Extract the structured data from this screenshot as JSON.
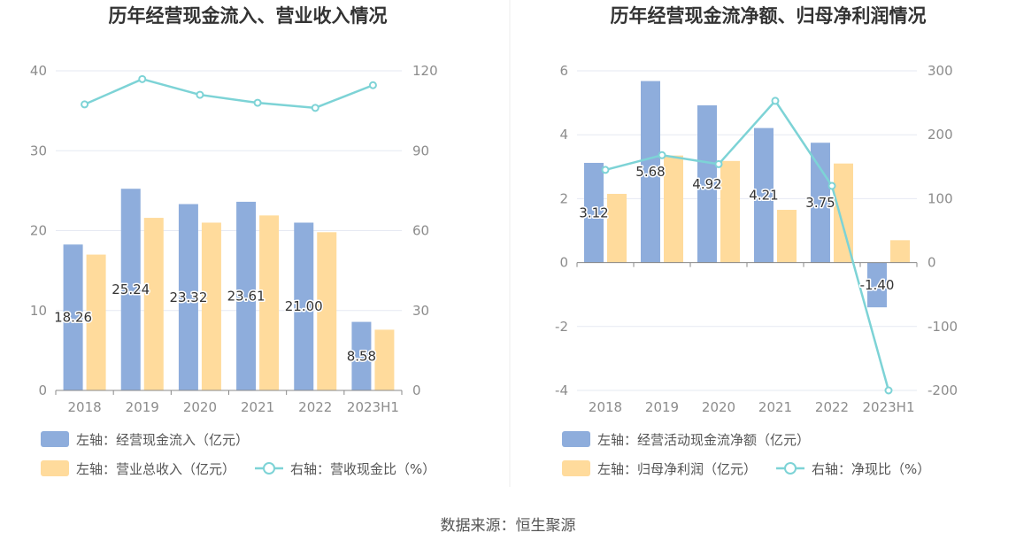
{
  "colors": {
    "bar_primary": "#8eaddc",
    "bar_secondary": "#ffdb9c",
    "line": "#7dd3d6",
    "grid": "#e6e9f2",
    "axis": "#888888",
    "text": "#333333"
  },
  "source_text": "数据来源：恒生聚源",
  "chart_data": [
    {
      "type": "bar",
      "title": "历年经营现金流入、营业收入情况",
      "categories": [
        "2018",
        "2019",
        "2020",
        "2021",
        "2022",
        "2023H1"
      ],
      "left_axis": {
        "range": [
          0,
          40
        ],
        "ticks": [
          "0",
          "10",
          "20",
          "30",
          "40"
        ]
      },
      "right_axis": {
        "range": [
          0,
          120
        ],
        "ticks": [
          "0",
          "30",
          "60",
          "90",
          "120"
        ]
      },
      "series": [
        {
          "name": "左轴：经营现金流入（亿元）",
          "type": "bar",
          "axis": "left",
          "values": [
            18.26,
            25.24,
            23.32,
            23.61,
            21.0,
            8.58
          ],
          "labels": [
            "18.26",
            "25.24",
            "23.32",
            "23.61",
            "21.00",
            "8.58"
          ]
        },
        {
          "name": "左轴：营业总收入（亿元）",
          "type": "bar",
          "axis": "left",
          "values": [
            17.0,
            21.6,
            21.0,
            21.9,
            19.8,
            7.6
          ]
        },
        {
          "name": "右轴：营收现金比（%）",
          "type": "line",
          "axis": "right",
          "values": [
            107.4,
            116.9,
            111.0,
            108.0,
            106.1,
            114.6
          ]
        }
      ]
    },
    {
      "type": "bar",
      "title": "历年经营现金流净额、归母净利润情况",
      "categories": [
        "2018",
        "2019",
        "2020",
        "2021",
        "2022",
        "2023H1"
      ],
      "left_axis": {
        "range": [
          -4,
          6
        ],
        "ticks": [
          "-4",
          "-2",
          "0",
          "2",
          "4",
          "6"
        ]
      },
      "right_axis": {
        "range": [
          -200,
          300
        ],
        "ticks": [
          "-200",
          "-100",
          "0",
          "100",
          "200",
          "300"
        ]
      },
      "series": [
        {
          "name": "左轴：经营活动现金流净额（亿元）",
          "type": "bar",
          "axis": "left",
          "values": [
            3.12,
            5.68,
            4.92,
            4.21,
            3.75,
            -1.4
          ],
          "labels": [
            "3.12",
            "5.68",
            "4.92",
            "4.21",
            "3.75",
            "-1.40"
          ]
        },
        {
          "name": "左轴：归母净利润（亿元）",
          "type": "bar",
          "axis": "left",
          "values": [
            2.15,
            3.35,
            3.18,
            1.65,
            3.1,
            0.7
          ]
        },
        {
          "name": "右轴：净现比（%）",
          "type": "line",
          "axis": "right",
          "values": [
            145,
            168,
            154,
            253,
            120,
            -200
          ]
        }
      ]
    }
  ]
}
